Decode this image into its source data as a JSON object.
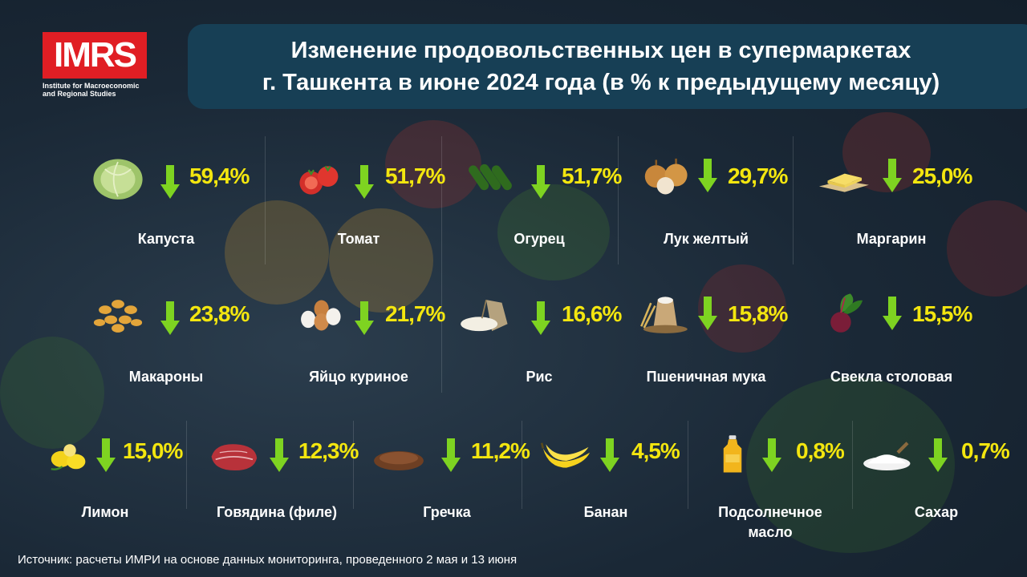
{
  "logo": {
    "text": "IMRS",
    "subtitle_line1": "Institute for Macroeconomic",
    "subtitle_line2": "and Regional Studies"
  },
  "title": {
    "line1": "Изменение продовольственных цен в супермаркетах",
    "line2": "г. Ташкента в июне 2024 года (в % к предыдущему месяцу)"
  },
  "colors": {
    "value": "#f3e60f",
    "arrow": "#7ed321",
    "title_bar": "#173f55",
    "logo_red": "#e01e24"
  },
  "items": [
    {
      "name": "Капуста",
      "value": "59,4%",
      "icon": "cabbage-icon",
      "direction": "down"
    },
    {
      "name": "Томат",
      "value": "51,7%",
      "icon": "tomato-icon",
      "direction": "down"
    },
    {
      "name": "Огурец",
      "value": "51,7%",
      "icon": "cucumber-icon",
      "direction": "down"
    },
    {
      "name": "Лук желтый",
      "value": "29,7%",
      "icon": "onion-icon",
      "direction": "down"
    },
    {
      "name": "Маргарин",
      "value": "25,0%",
      "icon": "margarine-icon",
      "direction": "down"
    },
    {
      "name": "Макароны",
      "value": "23,8%",
      "icon": "pasta-icon",
      "direction": "down"
    },
    {
      "name": "Яйцо куриное",
      "value": "21,7%",
      "icon": "eggs-icon",
      "direction": "down"
    },
    {
      "name": "Рис",
      "value": "16,6%",
      "icon": "rice-icon",
      "direction": "down"
    },
    {
      "name": "Пшеничная мука",
      "value": "15,8%",
      "icon": "flour-icon",
      "direction": "down"
    },
    {
      "name": "Свекла столовая",
      "value": "15,5%",
      "icon": "beet-icon",
      "direction": "down"
    },
    {
      "name": "Лимон",
      "value": "15,0%",
      "icon": "lemon-icon",
      "direction": "down"
    },
    {
      "name": "Говядина (филе)",
      "value": "12,3%",
      "icon": "beef-icon",
      "direction": "down"
    },
    {
      "name": "Гречка",
      "value": "11,2%",
      "icon": "buckwheat-icon",
      "direction": "down"
    },
    {
      "name": "Банан",
      "value": "4,5%",
      "icon": "banana-icon",
      "direction": "down"
    },
    {
      "name": "Подсолнечное",
      "name2": "масло",
      "value": "0,8%",
      "icon": "oil-bottle-icon",
      "direction": "down"
    },
    {
      "name": "Сахар",
      "value": "0,7%",
      "icon": "sugar-icon",
      "direction": "down"
    }
  ],
  "footer": "Источник: расчеты ИМРИ на основе данных мониторинга, проведенного 2 мая и 13 июня"
}
